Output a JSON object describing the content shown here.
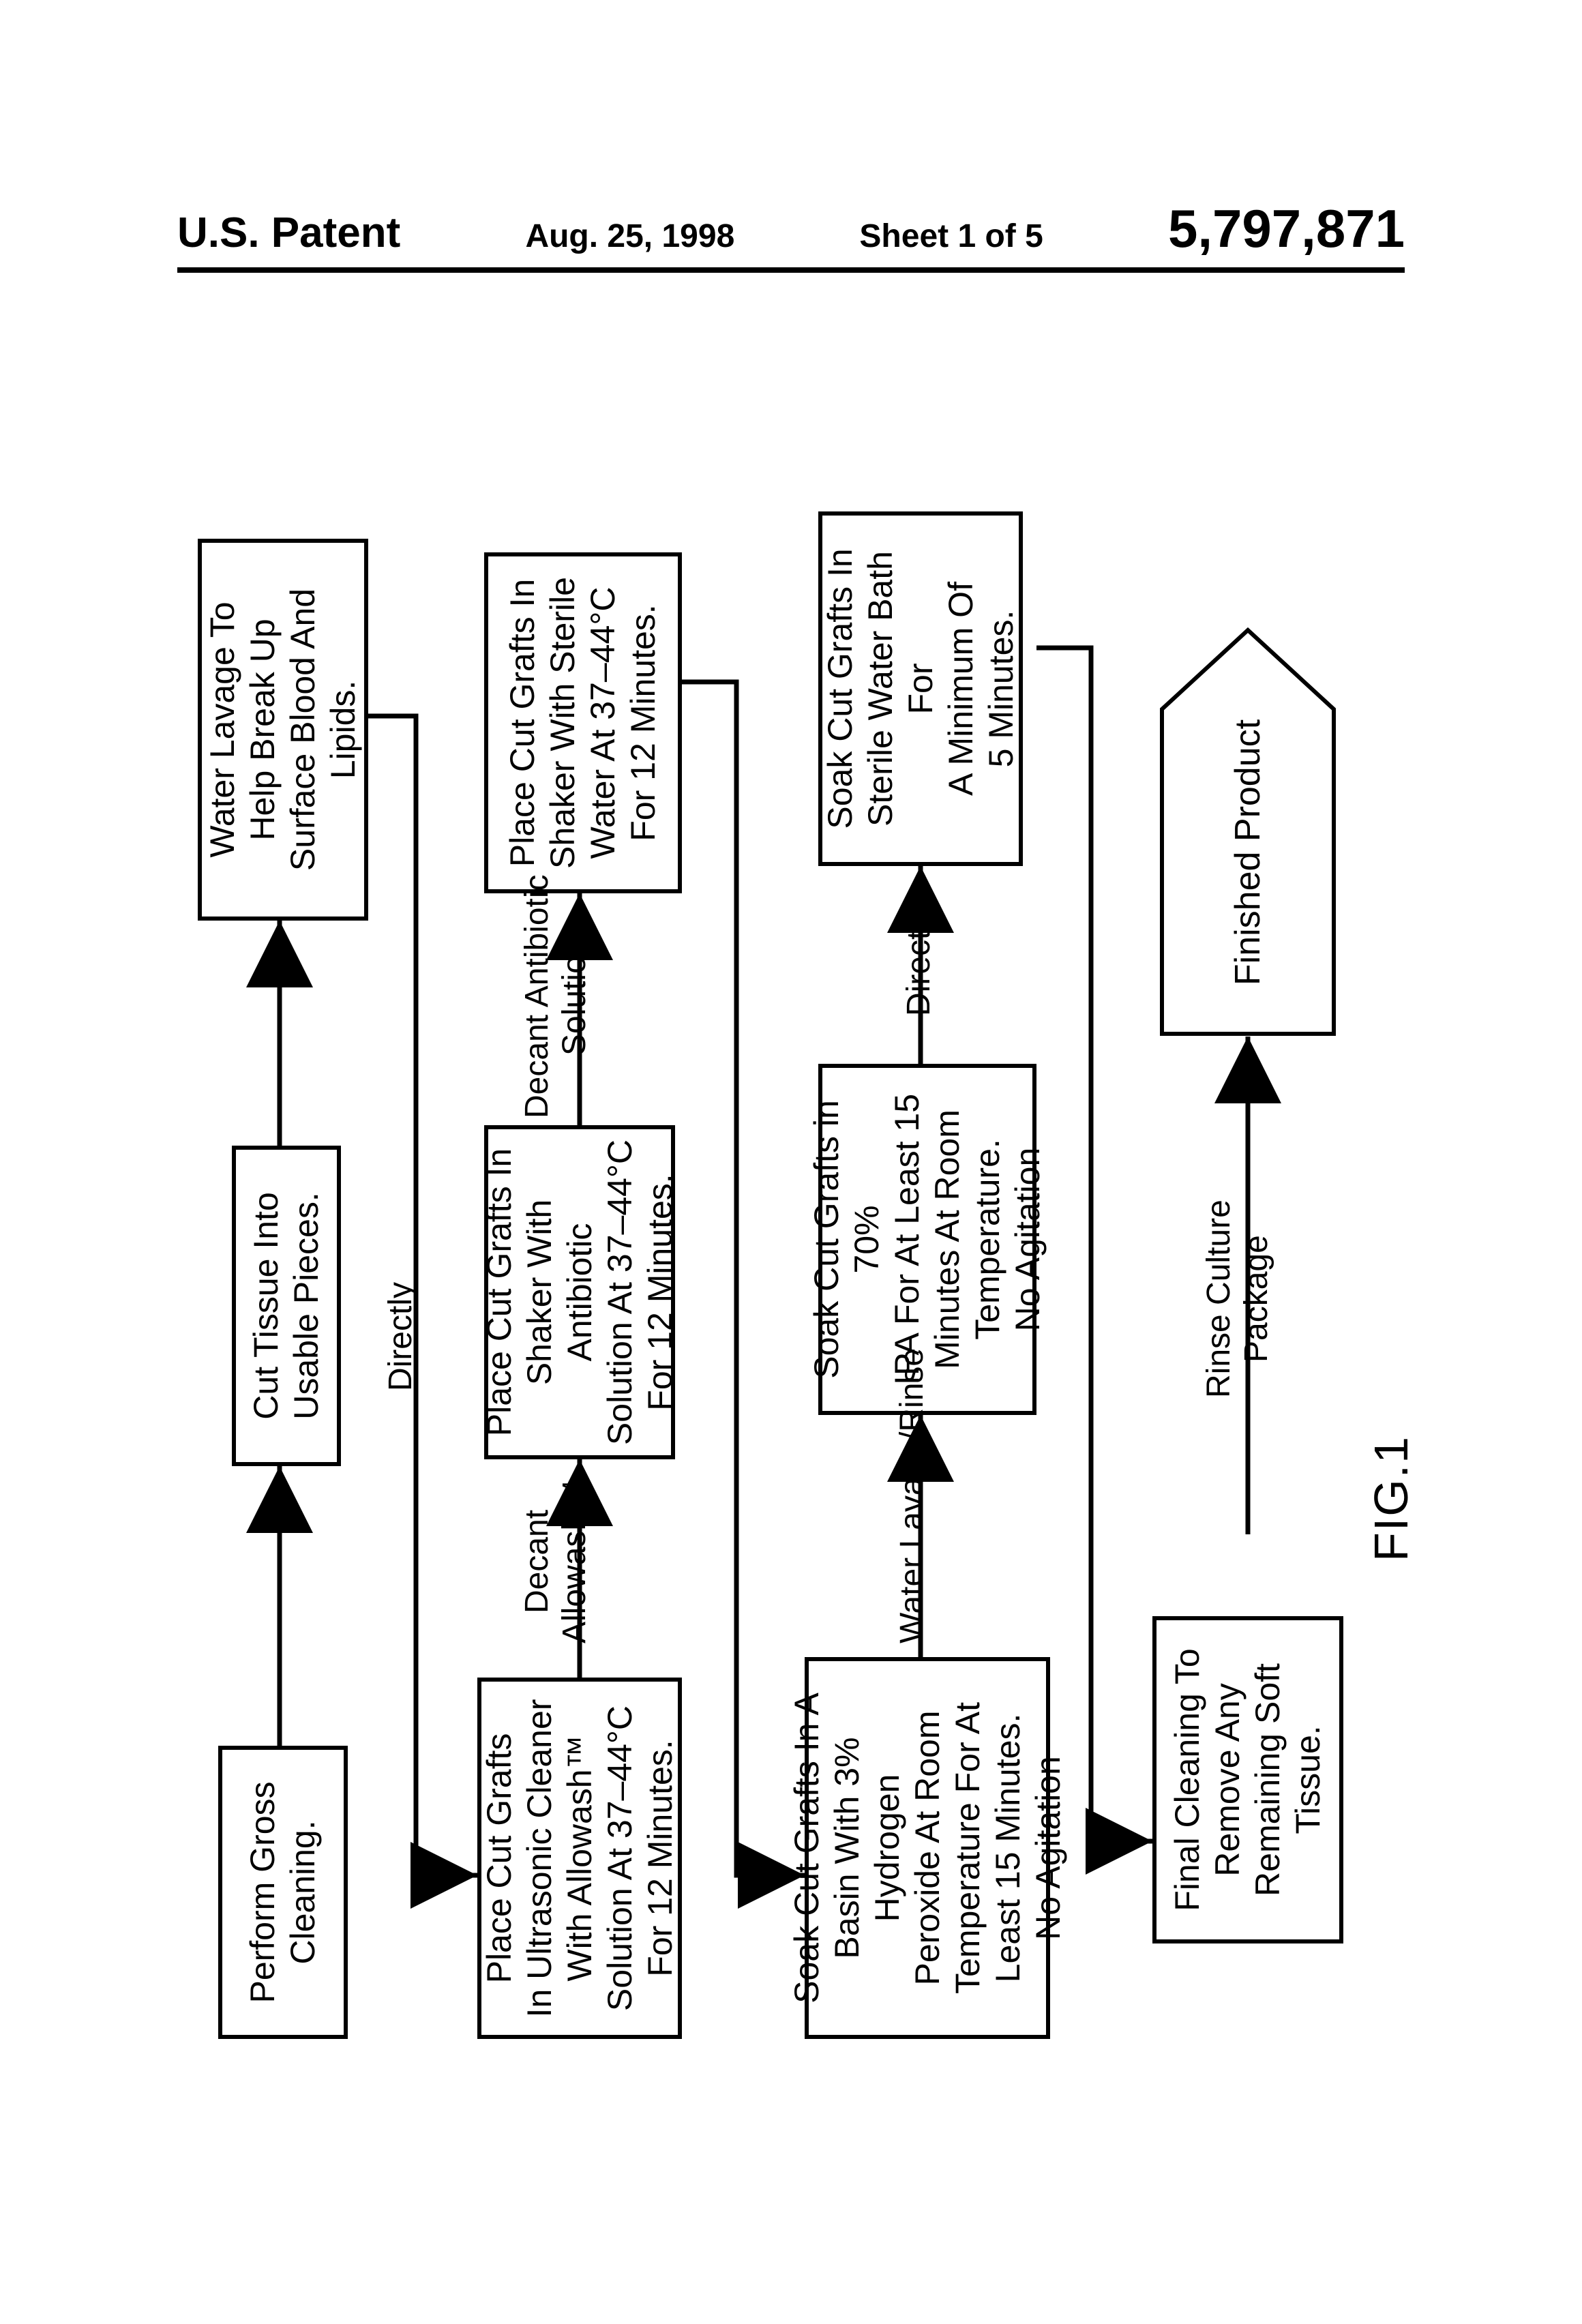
{
  "header": {
    "left": "U.S. Patent",
    "date": "Aug. 25, 1998",
    "sheet": "Sheet 1 of 5",
    "number": "5,797,871"
  },
  "figure_label": "FIG.1",
  "edges": {
    "directly1": "Directly",
    "decant_allowash": "Decant\nAllowash™",
    "decant_antibiotic": "Decant Antibiotic\nSolution",
    "water_lavage_rinse": "Water Lavage/Rinse",
    "directly2": "Directly",
    "rinse_culture_package": "Rinse Culture\nPackage"
  },
  "boxes": {
    "b1": "Perform Gross\nCleaning.",
    "b2": "Cut Tissue Into\nUsable Pieces.",
    "b3": "Water Lavage To\nHelp Break Up\nSurface Blood And\nLipids.",
    "b4": "Place Cut Grafts\nIn Ultrasonic Cleaner\nWith Allowash™\nSolution At 37–44°C\nFor 12 Minutes.",
    "b5": "Place Cut Grafts In\nShaker With Antibiotic\nSolution At 37–44°C\nFor 12 Minutes.",
    "b6": "Place Cut Grafts In\nShaker With Sterile\nWater At 37–44°C\nFor 12 Minutes.",
    "b7": "Soak Cut Grafts In A\nBasin With 3% Hydrogen\nPeroxide At Room\nTemperature For At\nLeast 15 Minutes.\nNo Agitation",
    "b8": "Soak Cut Grafts in 70%\nIPA For At Least 15\nMinutes At Room\nTemperature.\nNo Agitation",
    "b9": "Soak Cut Grafts In\nSterile Water Bath For\nA Minimum Of\n5 Minutes.",
    "b10": "Final Cleaning To\nRemove Any\nRemaining Soft\nTissue.",
    "finished": "Finished Product"
  }
}
